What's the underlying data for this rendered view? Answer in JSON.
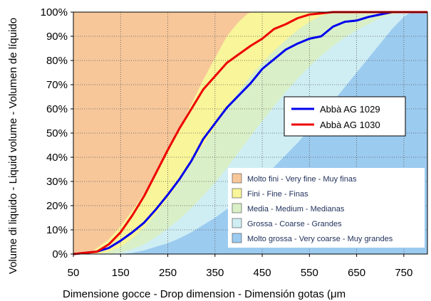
{
  "chart_data": {
    "type": "line",
    "xlabel": "Dimensione gocce - Drop dimension - Dimensión gotas (μm",
    "ylabel": "Volume di liquido - Liquid volume - Volumen de líquido",
    "xlim": [
      50,
      800
    ],
    "ylim": [
      0,
      100
    ],
    "x_ticks": [
      "50",
      "150",
      "250",
      "350",
      "450",
      "550",
      "650",
      "750"
    ],
    "y_ticks": [
      "0%",
      "10%",
      "20%",
      "30%",
      "40%",
      "50%",
      "60%",
      "70%",
      "80%",
      "90%",
      "100%"
    ],
    "grid": true,
    "legend_position": "center-right",
    "series": [
      {
        "name": "Abbà AG 1029",
        "color": "#0000ee",
        "x": [
          50,
          100,
          125,
          150,
          175,
          200,
          225,
          250,
          275,
          300,
          325,
          350,
          375,
          400,
          425,
          450,
          475,
          500,
          525,
          550,
          575,
          600,
          625,
          650,
          675,
          700,
          725,
          750,
          800
        ],
        "y": [
          0,
          1,
          2.5,
          5.5,
          9,
          13,
          18.5,
          24.5,
          31,
          38.5,
          47.5,
          54,
          60.5,
          65.5,
          70.5,
          76.5,
          80.5,
          84.5,
          87,
          89,
          90,
          94,
          96,
          96.5,
          98,
          99,
          100,
          100,
          100
        ]
      },
      {
        "name": "Abbà AG 1030",
        "color": "#ee0000",
        "x": [
          50,
          100,
          125,
          150,
          175,
          200,
          225,
          250,
          275,
          300,
          325,
          350,
          375,
          400,
          425,
          450,
          475,
          500,
          525,
          550,
          575,
          600,
          625,
          650,
          700,
          750,
          800
        ],
        "y": [
          0,
          1,
          4,
          9,
          16,
          24,
          33.5,
          43,
          52,
          60,
          68,
          73.5,
          79,
          82.5,
          86,
          89,
          93,
          95,
          97.5,
          99,
          99.5,
          100,
          100,
          100,
          100,
          100,
          100
        ]
      }
    ],
    "classes": [
      {
        "label": "Molto fini - Very fine - Muy finas",
        "color": "#f7c79a",
        "upper": [
          [
            50,
            100
          ],
          [
            800,
            100
          ]
        ]
      },
      {
        "label": "Fini - Fine - Finas",
        "color": "#f8f59a",
        "upper": [
          [
            50,
            0
          ],
          [
            75,
            0
          ],
          [
            90,
            1
          ],
          [
            100,
            2.5
          ],
          [
            125,
            6
          ],
          [
            150,
            11.5
          ],
          [
            175,
            18
          ],
          [
            200,
            25
          ],
          [
            225,
            33
          ],
          [
            250,
            42
          ],
          [
            275,
            52
          ],
          [
            300,
            62
          ],
          [
            325,
            72
          ],
          [
            350,
            81
          ],
          [
            375,
            90
          ],
          [
            400,
            96
          ],
          [
            420,
            99.5
          ],
          [
            430,
            100
          ],
          [
            800,
            100
          ]
        ]
      },
      {
        "label": "Media - Medium - Medianas",
        "color": "#d9efc8",
        "upper": [
          [
            50,
            0
          ],
          [
            100,
            0
          ],
          [
            125,
            1
          ],
          [
            150,
            3
          ],
          [
            175,
            6.5
          ],
          [
            200,
            11
          ],
          [
            225,
            16.5
          ],
          [
            250,
            23
          ],
          [
            275,
            30
          ],
          [
            300,
            37.5
          ],
          [
            325,
            45
          ],
          [
            350,
            52.5
          ],
          [
            375,
            60
          ],
          [
            400,
            67
          ],
          [
            425,
            73.5
          ],
          [
            450,
            79
          ],
          [
            475,
            84
          ],
          [
            500,
            88.5
          ],
          [
            525,
            92.5
          ],
          [
            550,
            96
          ],
          [
            575,
            98.5
          ],
          [
            600,
            100
          ],
          [
            800,
            100
          ]
        ]
      },
      {
        "label": "Grossa - Coarse - Grandes",
        "color": "#cfeef4",
        "upper": [
          [
            50,
            0
          ],
          [
            125,
            0
          ],
          [
            150,
            0.5
          ],
          [
            175,
            2
          ],
          [
            200,
            4
          ],
          [
            225,
            7
          ],
          [
            250,
            10.5
          ],
          [
            275,
            14.5
          ],
          [
            300,
            19
          ],
          [
            325,
            24
          ],
          [
            350,
            29.5
          ],
          [
            375,
            35.5
          ],
          [
            400,
            42
          ],
          [
            425,
            48.5
          ],
          [
            450,
            55
          ],
          [
            475,
            61
          ],
          [
            500,
            67
          ],
          [
            525,
            72.5
          ],
          [
            550,
            77.5
          ],
          [
            575,
            82
          ],
          [
            600,
            86
          ],
          [
            625,
            89.5
          ],
          [
            650,
            92.5
          ],
          [
            675,
            95
          ],
          [
            700,
            97.5
          ],
          [
            725,
            99
          ],
          [
            750,
            100
          ],
          [
            800,
            100
          ]
        ]
      },
      {
        "label": "Molto grossa - Very coarse - Muy grandes",
        "color": "#9ccbf0",
        "upper": [
          [
            50,
            0
          ],
          [
            150,
            0
          ],
          [
            175,
            0.5
          ],
          [
            200,
            1.5
          ],
          [
            225,
            3
          ],
          [
            250,
            4.5
          ],
          [
            275,
            6.5
          ],
          [
            300,
            9
          ],
          [
            325,
            12
          ],
          [
            350,
            15
          ],
          [
            375,
            18.5
          ],
          [
            400,
            22.5
          ],
          [
            425,
            26.5
          ],
          [
            450,
            31
          ],
          [
            475,
            36
          ],
          [
            500,
            41
          ],
          [
            525,
            46
          ],
          [
            550,
            51.5
          ],
          [
            575,
            57
          ],
          [
            600,
            63
          ],
          [
            625,
            69
          ],
          [
            650,
            75
          ],
          [
            675,
            81
          ],
          [
            700,
            87
          ],
          [
            725,
            93
          ],
          [
            750,
            98
          ],
          [
            765,
            100
          ],
          [
            800,
            100
          ]
        ]
      }
    ]
  }
}
